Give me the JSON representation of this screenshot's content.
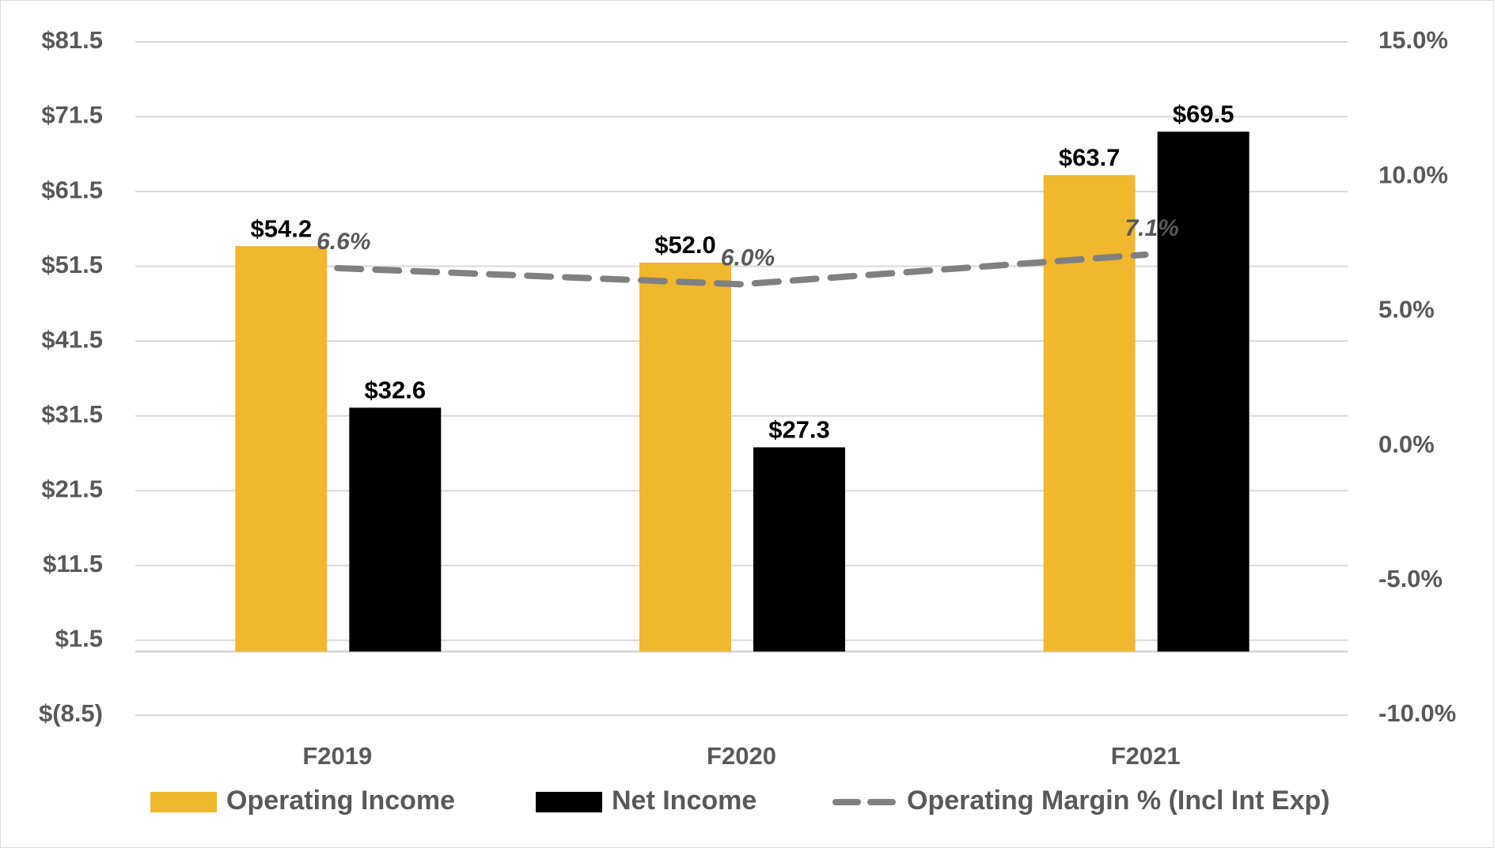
{
  "chart_data": {
    "type": "bar",
    "categories": [
      "F2019",
      "F2020",
      "F2021"
    ],
    "series": [
      {
        "name": "Operating Income",
        "type": "bar",
        "color": "#f0b72f",
        "values": [
          54.2,
          52.0,
          63.7
        ],
        "value_labels": [
          "$54.2",
          "$52.0",
          "$63.7"
        ]
      },
      {
        "name": "Net Income",
        "type": "bar",
        "color": "#000000",
        "values": [
          32.6,
          27.3,
          69.5
        ],
        "value_labels": [
          "$32.6",
          "$27.3",
          "$69.5"
        ]
      },
      {
        "name": "Operating Margin % (Incl Int Exp)",
        "type": "line",
        "axis": "y2",
        "color": "#808080",
        "dashed": true,
        "values": [
          6.6,
          6.0,
          7.1
        ],
        "value_labels": [
          "6.6%",
          "6.0%",
          "7.1%"
        ]
      }
    ],
    "ylim": [
      -8.5,
      81.5
    ],
    "yticks": [
      {
        "value": -8.5,
        "label": "$(8.5)"
      },
      {
        "value": 1.5,
        "label": "$1.5"
      },
      {
        "value": 11.5,
        "label": "$11.5"
      },
      {
        "value": 21.5,
        "label": "$21.5"
      },
      {
        "value": 31.5,
        "label": "$31.5"
      },
      {
        "value": 41.5,
        "label": "$41.5"
      },
      {
        "value": 51.5,
        "label": "$51.5"
      },
      {
        "value": 61.5,
        "label": "$61.5"
      },
      {
        "value": 71.5,
        "label": "$71.5"
      },
      {
        "value": 81.5,
        "label": "$81.5"
      }
    ],
    "y2lim": [
      -10,
      15
    ],
    "y2ticks": [
      {
        "value": -10,
        "label": "-10.0%"
      },
      {
        "value": -5,
        "label": "-5.0%"
      },
      {
        "value": 0,
        "label": "0.0%"
      },
      {
        "value": 5,
        "label": "5.0%"
      },
      {
        "value": 10,
        "label": "10.0%"
      },
      {
        "value": 15,
        "label": "15.0%"
      }
    ],
    "grid": true,
    "legend": "bottom"
  }
}
